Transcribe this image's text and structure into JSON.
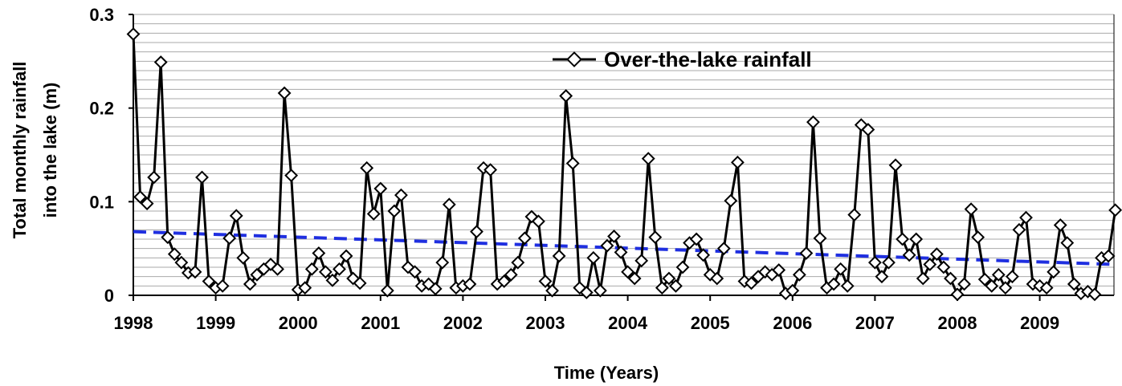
{
  "chart_data": {
    "type": "line",
    "xlabel": "Time (Years)",
    "ylabel_lines": [
      "Total monthly rainfall",
      "into the lake (m)"
    ],
    "ylim": [
      0,
      0.3
    ],
    "y_ticks": [
      0,
      0.1,
      0.2,
      0.3
    ],
    "y_tick_labels": [
      "0",
      "0.1",
      "0.2",
      "0.3"
    ],
    "x_ticks": [
      "1998",
      "1999",
      "2000",
      "2001",
      "2002",
      "2003",
      "2004",
      "2005",
      "2006",
      "2007",
      "2008",
      "2009"
    ],
    "grid": "horizontal",
    "legend_position": "top-right",
    "series": [
      {
        "name": "Over-the-lake rainfall",
        "color": "#000000",
        "marker": "diamond",
        "start": "1998-01",
        "frequency": "monthly",
        "values": [
          0.279,
          0.105,
          0.098,
          0.126,
          0.249,
          0.062,
          0.044,
          0.035,
          0.024,
          0.025,
          0.126,
          0.015,
          0.008,
          0.01,
          0.061,
          0.085,
          0.04,
          0.012,
          0.022,
          0.028,
          0.033,
          0.028,
          0.216,
          0.128,
          0.006,
          0.008,
          0.028,
          0.045,
          0.025,
          0.016,
          0.028,
          0.042,
          0.018,
          0.013,
          0.136,
          0.087,
          0.114,
          0.005,
          0.09,
          0.107,
          0.03,
          0.025,
          0.01,
          0.012,
          0.007,
          0.035,
          0.097,
          0.008,
          0.01,
          0.012,
          0.068,
          0.136,
          0.134,
          0.012,
          0.015,
          0.022,
          0.035,
          0.061,
          0.084,
          0.079,
          0.015,
          0.005,
          0.042,
          0.213,
          0.141,
          0.008,
          0.003,
          0.04,
          0.005,
          0.053,
          0.063,
          0.046,
          0.025,
          0.018,
          0.037,
          0.146,
          0.062,
          0.008,
          0.018,
          0.01,
          0.03,
          0.056,
          0.06,
          0.043,
          0.022,
          0.018,
          0.05,
          0.101,
          0.142,
          0.015,
          0.013,
          0.02,
          0.025,
          0.022,
          0.027,
          0.002,
          0.005,
          0.022,
          0.045,
          0.185,
          0.061,
          0.008,
          0.012,
          0.028,
          0.01,
          0.086,
          0.182,
          0.177,
          0.035,
          0.02,
          0.035,
          0.139,
          0.06,
          0.043,
          0.06,
          0.018,
          0.033,
          0.044,
          0.03,
          0.018,
          0.001,
          0.012,
          0.092,
          0.062,
          0.017,
          0.01,
          0.022,
          0.008,
          0.02,
          0.07,
          0.083,
          0.012,
          0.01,
          0.008,
          0.025,
          0.075,
          0.056,
          0.012,
          0.002,
          0.004,
          0.001,
          0.04,
          0.042,
          0.091
        ]
      }
    ],
    "trendline": {
      "color": "#1f2fe0",
      "style": "dashed",
      "start_value": 0.068,
      "end_value": 0.033
    }
  }
}
